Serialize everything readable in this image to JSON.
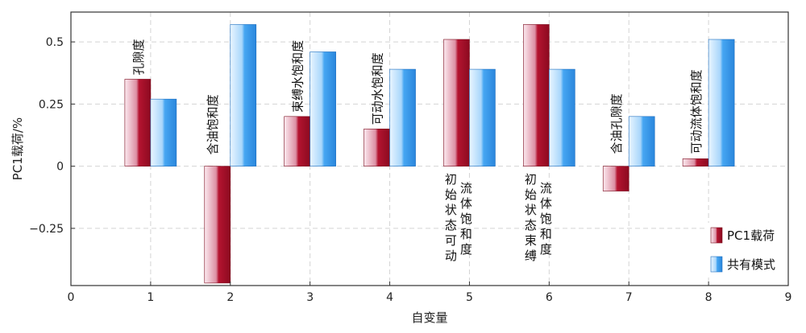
{
  "chart_data": {
    "type": "bar",
    "xlabel": "自变量",
    "ylabel": "PC1载荷/%",
    "xlim": [
      0,
      9
    ],
    "ylim": [
      -0.48,
      0.62
    ],
    "x_ticks": [
      0,
      1,
      2,
      3,
      4,
      5,
      6,
      7,
      8,
      9
    ],
    "y_ticks": [
      -0.25,
      0,
      0.25,
      0.5
    ],
    "y_tick_labels": [
      "−0.25",
      "0",
      "0.25",
      "0.5"
    ],
    "grid": true,
    "legend_position": "bottom-right",
    "x": [
      1,
      2,
      3,
      4,
      5,
      6,
      7,
      8
    ],
    "categories": [
      "孔隙度",
      "含油饱和度",
      "束缚水饱和度",
      "可动水饱和度",
      "初始状态可动流体饱和度",
      "初始状态束缚流体饱和度",
      "含油孔隙度",
      "可动流体饱和度"
    ],
    "series": [
      {
        "name": "PC1载荷",
        "color": "#b0102a",
        "values": [
          0.35,
          -0.47,
          0.2,
          0.15,
          0.51,
          0.57,
          -0.1,
          0.03
        ]
      },
      {
        "name": "共有模式",
        "color": "#2e90e8",
        "values": [
          0.27,
          0.57,
          0.46,
          0.39,
          0.39,
          0.39,
          0.2,
          0.51
        ]
      }
    ]
  }
}
